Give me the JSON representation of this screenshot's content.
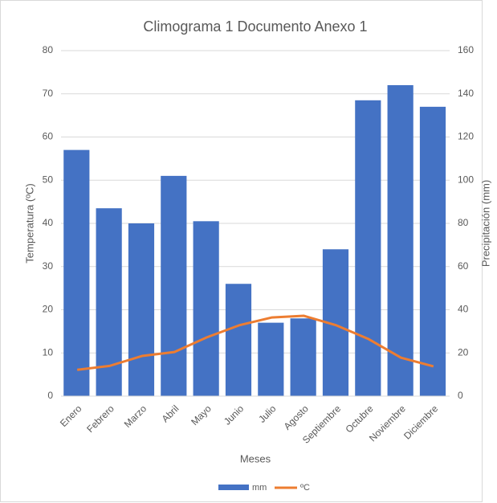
{
  "chart_data": {
    "type": "bar-line",
    "title": "Climograma 1 Documento Anexo 1",
    "x_label": "Meses",
    "y_label": "Temperatura (ºC)",
    "y2_label": "Precipitación (mm)",
    "categories": [
      "Enero",
      "Febrero",
      "Marzo",
      "Abril",
      "Mayo",
      "Junio",
      "Julio",
      "Agosto",
      "Septiembre",
      "Octubre",
      "Noviembre",
      "Diciembre"
    ],
    "series": [
      {
        "name": "mm",
        "type": "bar",
        "axis": "y2",
        "color": "#4472c4",
        "values": [
          114,
          87,
          80,
          102,
          81,
          52,
          34,
          36,
          68,
          137,
          144,
          134
        ]
      },
      {
        "name": "ºC",
        "type": "line",
        "axis": "y",
        "color": "#ed7d31",
        "values": [
          6.1,
          7,
          9.3,
          10.2,
          13.6,
          16.4,
          18.2,
          18.6,
          16.4,
          13.2,
          8.9,
          6.9
        ]
      }
    ],
    "ylim": [
      0,
      80
    ],
    "yticks": [
      0,
      10,
      20,
      30,
      40,
      50,
      60,
      70,
      80
    ],
    "y2lim": [
      0,
      160
    ],
    "y2ticks": [
      0,
      20,
      40,
      60,
      80,
      100,
      120,
      140,
      160
    ],
    "grid": true,
    "legend": "bottom"
  }
}
